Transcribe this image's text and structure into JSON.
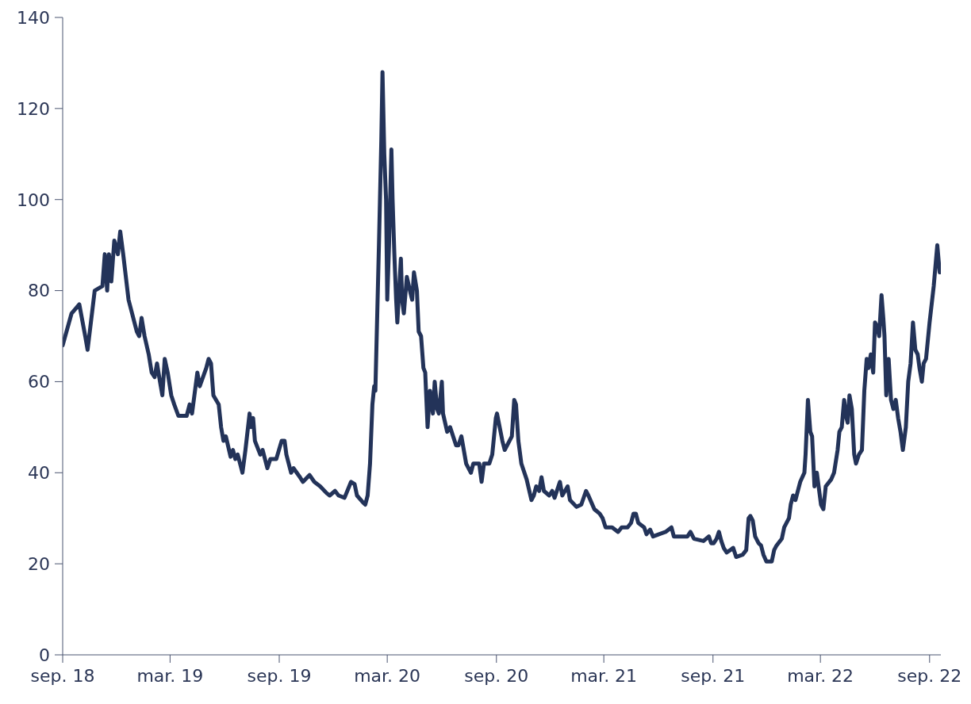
{
  "chart_data": {
    "type": "line",
    "x": [
      "2018-09-01",
      "2018-09-16",
      "2018-09-29",
      "2018-10-09",
      "2018-10-13",
      "2018-10-25",
      "2018-11-07",
      "2018-11-11",
      "2018-11-15",
      "2018-11-18",
      "2018-11-22",
      "2018-11-27",
      "2018-12-03",
      "2018-12-07",
      "2018-12-12",
      "2018-12-21",
      "2018-12-31",
      "2019-01-04",
      "2019-01-08",
      "2019-01-12",
      "2019-01-17",
      "2019-01-24",
      "2019-01-29",
      "2019-02-03",
      "2019-02-07",
      "2019-02-12",
      "2019-02-16",
      "2019-02-20",
      "2019-02-25",
      "2019-03-03",
      "2019-03-08",
      "2019-03-15",
      "2019-03-29",
      "2019-04-03",
      "2019-04-07",
      "2019-04-16",
      "2019-04-20",
      "2019-05-01",
      "2019-05-05",
      "2019-05-09",
      "2019-05-13",
      "2019-05-22",
      "2019-05-26",
      "2019-05-30",
      "2019-06-03",
      "2019-06-11",
      "2019-06-15",
      "2019-06-19",
      "2019-06-23",
      "2019-07-01",
      "2019-07-06",
      "2019-07-13",
      "2019-07-15",
      "2019-07-19",
      "2019-07-22",
      "2019-07-31",
      "2019-08-04",
      "2019-08-12",
      "2019-08-17",
      "2019-08-27",
      "2019-09-05",
      "2019-09-10",
      "2019-09-13",
      "2019-09-21",
      "2019-09-25",
      "2019-10-06",
      "2019-10-11",
      "2019-10-22",
      "2019-10-30",
      "2019-11-09",
      "2019-11-20",
      "2019-11-25",
      "2019-12-04",
      "2019-12-10",
      "2019-12-20",
      "2019-12-31",
      "2020-01-06",
      "2020-01-10",
      "2020-01-20",
      "2020-01-24",
      "2020-01-28",
      "2020-02-01",
      "2020-02-05",
      "2020-02-08",
      "2020-02-10",
      "2020-02-16",
      "2020-02-20",
      "2020-02-22",
      "2020-02-25",
      "2020-02-28",
      "2020-03-01",
      "2020-03-04",
      "2020-03-08",
      "2020-03-10",
      "2020-03-13",
      "2020-03-16",
      "2020-03-18",
      "2020-03-24",
      "2020-03-26",
      "2020-03-29",
      "2020-04-03",
      "2020-04-10",
      "2020-04-12",
      "2020-04-15",
      "2020-04-20",
      "2020-04-23",
      "2020-04-27",
      "2020-05-01",
      "2020-05-04",
      "2020-05-08",
      "2020-05-12",
      "2020-05-17",
      "2020-05-20",
      "2020-05-24",
      "2020-05-27",
      "2020-06-01",
      "2020-06-03",
      "2020-06-10",
      "2020-06-15",
      "2020-06-25",
      "2020-06-29",
      "2020-07-04",
      "2020-07-12",
      "2020-07-20",
      "2020-07-24",
      "2020-08-03",
      "2020-08-07",
      "2020-08-11",
      "2020-08-20",
      "2020-08-25",
      "2020-08-31",
      "2020-09-02",
      "2020-09-11",
      "2020-09-15",
      "2020-09-27",
      "2020-10-01",
      "2020-10-04",
      "2020-10-08",
      "2020-10-13",
      "2020-10-22",
      "2020-10-30",
      "2020-11-03",
      "2020-11-07",
      "2020-11-12",
      "2020-11-16",
      "2020-11-20",
      "2020-11-29",
      "2020-12-04",
      "2020-12-08",
      "2020-12-17",
      "2020-12-21",
      "2020-12-30",
      "2021-01-03",
      "2021-01-14",
      "2021-01-22",
      "2021-01-30",
      "2021-02-03",
      "2021-02-13",
      "2021-02-22",
      "2021-02-27",
      "2021-03-04",
      "2021-03-15",
      "2021-03-25",
      "2021-03-31",
      "2021-04-10",
      "2021-04-16",
      "2021-04-20",
      "2021-04-24",
      "2021-04-28",
      "2021-05-08",
      "2021-05-12",
      "2021-05-18",
      "2021-05-23",
      "2021-06-02",
      "2021-06-13",
      "2021-06-23",
      "2021-06-27",
      "2021-07-09",
      "2021-07-20",
      "2021-07-25",
      "2021-07-31",
      "2021-08-16",
      "2021-08-25",
      "2021-08-29",
      "2021-09-02",
      "2021-09-07",
      "2021-09-11",
      "2021-09-15",
      "2021-09-19",
      "2021-09-24",
      "2021-09-30",
      "2021-10-05",
      "2021-10-10",
      "2021-10-21",
      "2021-10-27",
      "2021-10-31",
      "2021-11-03",
      "2021-11-07",
      "2021-11-11",
      "2021-11-17",
      "2021-11-21",
      "2021-11-25",
      "2021-11-30",
      "2021-12-09",
      "2021-12-13",
      "2021-12-17",
      "2021-12-26",
      "2021-12-30",
      "2022-01-03",
      "2022-01-07",
      "2022-01-10",
      "2022-01-14",
      "2022-01-18",
      "2022-01-26",
      "2022-02-02",
      "2022-02-04",
      "2022-02-08",
      "2022-02-12",
      "2022-02-15",
      "2022-02-19",
      "2022-02-23",
      "2022-03-02",
      "2022-03-06",
      "2022-03-10",
      "2022-03-19",
      "2022-03-24",
      "2022-03-30",
      "2022-04-02",
      "2022-04-06",
      "2022-04-10",
      "2022-04-14",
      "2022-04-16",
      "2022-04-19",
      "2022-04-23",
      "2022-04-27",
      "2022-04-30",
      "2022-05-05",
      "2022-05-10",
      "2022-05-14",
      "2022-05-18",
      "2022-05-21",
      "2022-05-25",
      "2022-05-29",
      "2022-06-01",
      "2022-06-05",
      "2022-06-08",
      "2022-06-12",
      "2022-06-15",
      "2022-06-17",
      "2022-06-20",
      "2022-06-24",
      "2022-06-28",
      "2022-07-02",
      "2022-07-06",
      "2022-07-10",
      "2022-07-14",
      "2022-07-18",
      "2022-07-23",
      "2022-07-27",
      "2022-07-31",
      "2022-08-04",
      "2022-08-08",
      "2022-08-12",
      "2022-08-15",
      "2022-08-19",
      "2022-08-22",
      "2022-08-26",
      "2022-09-01",
      "2022-09-08",
      "2022-09-14",
      "2022-09-18"
    ],
    "series": [
      {
        "color": "#233359",
        "values": [
          68,
          75,
          77,
          70,
          67,
          80,
          81,
          88,
          80,
          88,
          82,
          91,
          88,
          93,
          88,
          78,
          73,
          71,
          70,
          74,
          70,
          66,
          62,
          61,
          64,
          60,
          57,
          65,
          62,
          57,
          55,
          52.5,
          52.5,
          55,
          53,
          62,
          59,
          63,
          65,
          64,
          57,
          55,
          50,
          47,
          48,
          43.5,
          45,
          43,
          44,
          40,
          45,
          53,
          50,
          52,
          47,
          44,
          45,
          41,
          43,
          43,
          47,
          47,
          44,
          40,
          41,
          39,
          38,
          39.5,
          38,
          37,
          35.5,
          35,
          36,
          35,
          34.5,
          38,
          37.5,
          35,
          33.5,
          33,
          35,
          42,
          55,
          59,
          58,
          90,
          113,
          128,
          110,
          100,
          78,
          90,
          111,
          100,
          88,
          78,
          73,
          87,
          78,
          75,
          83,
          79,
          78,
          84,
          80,
          71,
          70,
          63,
          62,
          50,
          58,
          53,
          60,
          54,
          53,
          60,
          53,
          49,
          50,
          46,
          46,
          48,
          42,
          40,
          42,
          42,
          38,
          42,
          42,
          44,
          52,
          53,
          47,
          45,
          48,
          56,
          55,
          47,
          42,
          38.5,
          34,
          35,
          37,
          36,
          39,
          36,
          35,
          36,
          34.5,
          38,
          35,
          37,
          34,
          32.5,
          33,
          36,
          35,
          32,
          31,
          30,
          28,
          28,
          27,
          28,
          28,
          29,
          31,
          31,
          29,
          28,
          26.5,
          27.5,
          26,
          26.5,
          27,
          28,
          26,
          26,
          26,
          27,
          25.5,
          25,
          26,
          24.5,
          24.5,
          25.5,
          27,
          25,
          23.5,
          22.5,
          23,
          23.5,
          21.5,
          22,
          23,
          30,
          30.5,
          29.5,
          26,
          24.5,
          24,
          22,
          20.5,
          20.5,
          23,
          24,
          25.5,
          28,
          29,
          30,
          33,
          35,
          34,
          38,
          40,
          44,
          56,
          49,
          48,
          37,
          40,
          33,
          32,
          37,
          38.5,
          40,
          45,
          49,
          50,
          56,
          52,
          51,
          57,
          54,
          44,
          42,
          44,
          45,
          58,
          65,
          63,
          66,
          62,
          73,
          72,
          70,
          79,
          74,
          70,
          57,
          65,
          56,
          54,
          56,
          52,
          49,
          45,
          50,
          60,
          64,
          73,
          67,
          66,
          63,
          60,
          64,
          65,
          73,
          81,
          90,
          84
        ]
      }
    ],
    "xlim": [
      "2018-09-01",
      "2022-09-20"
    ],
    "xticks": [
      {
        "value": "2018-09-01",
        "label": "sep. 18"
      },
      {
        "value": "2019-03-01",
        "label": "mar. 19"
      },
      {
        "value": "2019-09-01",
        "label": "sep. 19"
      },
      {
        "value": "2020-03-01",
        "label": "mar. 20"
      },
      {
        "value": "2020-09-01",
        "label": "sep. 20"
      },
      {
        "value": "2021-03-01",
        "label": "mar. 21"
      },
      {
        "value": "2021-09-01",
        "label": "sep. 21"
      },
      {
        "value": "2022-03-01",
        "label": "mar. 22"
      },
      {
        "value": "2022-09-01",
        "label": "sep. 22"
      }
    ],
    "ylim": [
      0,
      140
    ],
    "yticks": [
      0,
      20,
      40,
      60,
      80,
      100,
      120,
      140
    ],
    "grid": false,
    "marker": "none"
  }
}
